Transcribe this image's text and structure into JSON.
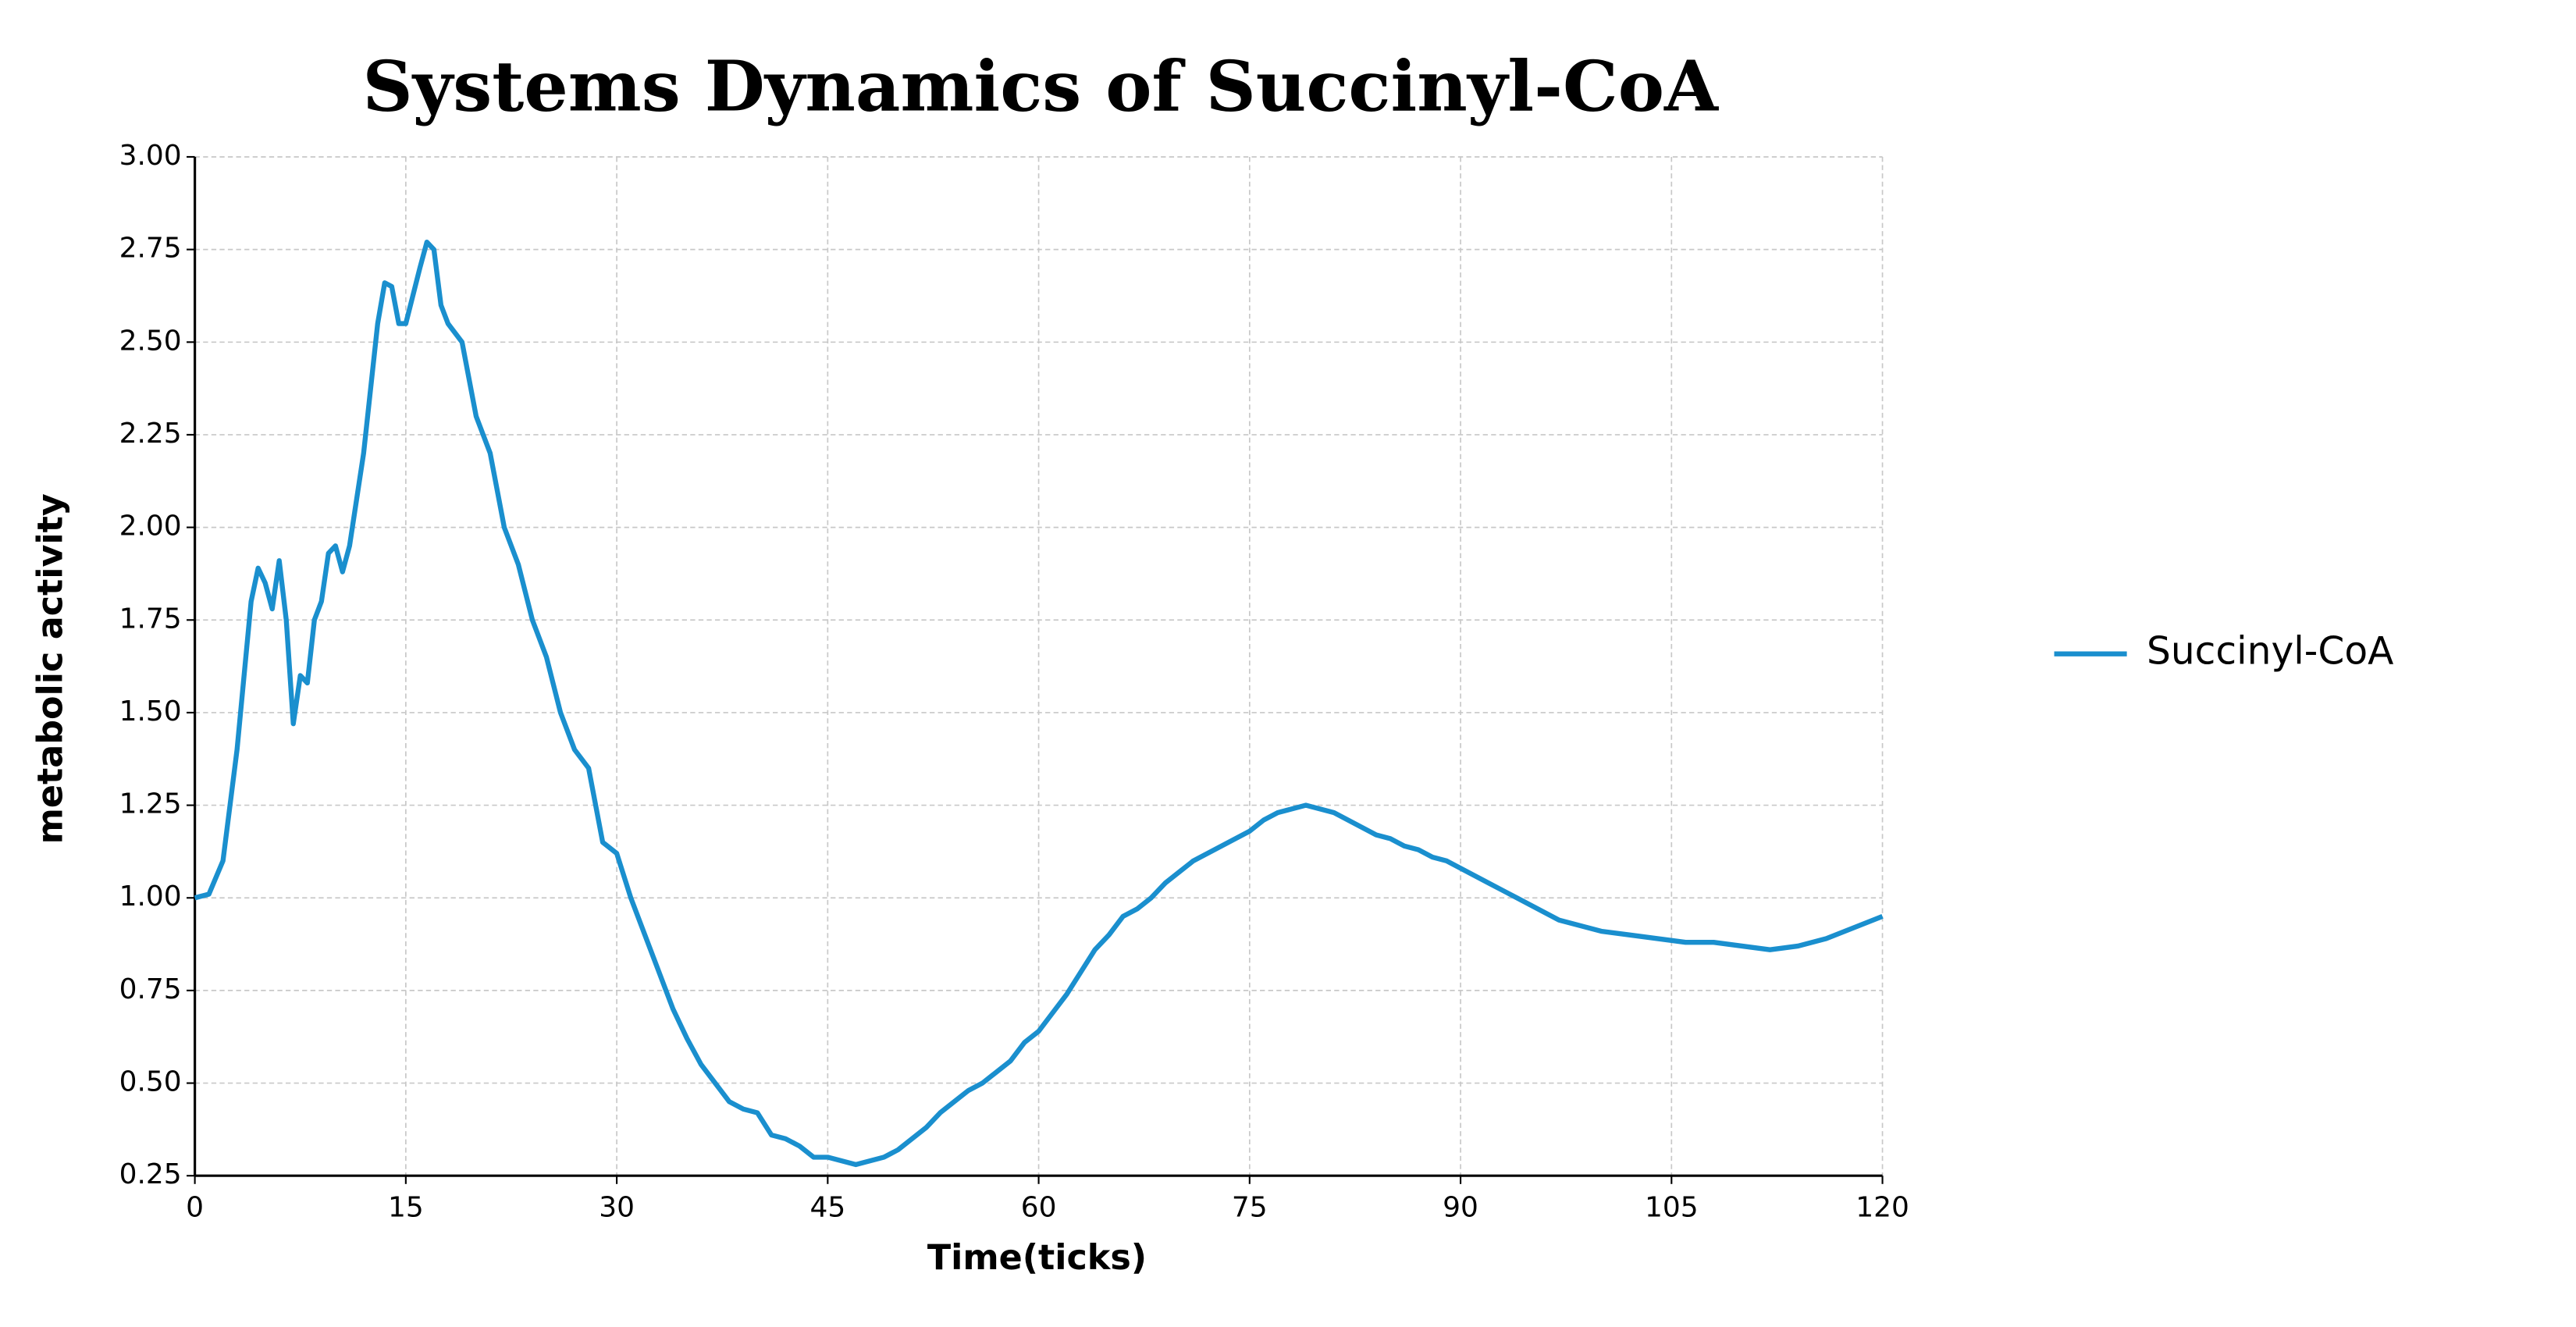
{
  "chart_data": {
    "type": "line",
    "title": "Systems Dynamics of Succinyl-CoA",
    "x_label": "Time(ticks)",
    "y_label": "metabolic activity",
    "x": [
      0,
      1,
      2,
      3,
      4,
      4.5,
      5,
      5.5,
      6,
      6.5,
      7,
      7.5,
      8,
      8.5,
      9,
      9.5,
      10,
      10.5,
      11,
      12,
      13,
      13.5,
      14,
      14.5,
      15,
      16,
      16.5,
      17,
      17.5,
      18,
      19,
      20,
      21,
      22,
      23,
      24,
      25,
      26,
      27,
      28,
      29,
      30,
      31,
      32,
      33,
      34,
      35,
      36,
      37,
      38,
      39,
      40,
      41,
      42,
      43,
      44,
      45,
      46,
      47,
      48,
      49,
      50,
      51,
      52,
      53,
      54,
      55,
      56,
      57,
      58,
      59,
      60,
      61,
      62,
      63,
      64,
      65,
      66,
      67,
      68,
      69,
      70,
      71,
      72,
      73,
      74,
      75,
      76,
      77,
      78,
      79,
      80,
      81,
      82,
      83,
      84,
      85,
      86,
      87,
      88,
      89,
      90,
      91,
      92,
      93,
      94,
      95,
      96,
      97,
      98,
      99,
      100,
      102,
      104,
      106,
      108,
      110,
      112,
      114,
      116,
      118,
      120
    ],
    "series": [
      {
        "name": "Succinyl-CoA",
        "color": "#1a8fce",
        "values": [
          1.0,
          1.01,
          1.1,
          1.4,
          1.8,
          1.89,
          1.85,
          1.78,
          1.91,
          1.75,
          1.47,
          1.6,
          1.58,
          1.75,
          1.8,
          1.93,
          1.95,
          1.88,
          1.95,
          2.2,
          2.55,
          2.66,
          2.65,
          2.55,
          2.55,
          2.7,
          2.77,
          2.75,
          2.6,
          2.55,
          2.5,
          2.3,
          2.2,
          2.0,
          1.9,
          1.75,
          1.65,
          1.5,
          1.4,
          1.35,
          1.15,
          1.12,
          1.0,
          0.9,
          0.8,
          0.7,
          0.62,
          0.55,
          0.5,
          0.45,
          0.43,
          0.42,
          0.36,
          0.35,
          0.33,
          0.3,
          0.3,
          0.29,
          0.28,
          0.29,
          0.3,
          0.32,
          0.35,
          0.38,
          0.42,
          0.45,
          0.48,
          0.5,
          0.53,
          0.56,
          0.61,
          0.64,
          0.69,
          0.74,
          0.8,
          0.86,
          0.9,
          0.95,
          0.97,
          1.0,
          1.04,
          1.07,
          1.1,
          1.12,
          1.14,
          1.16,
          1.18,
          1.21,
          1.23,
          1.24,
          1.25,
          1.24,
          1.23,
          1.21,
          1.19,
          1.17,
          1.16,
          1.14,
          1.13,
          1.11,
          1.1,
          1.08,
          1.06,
          1.04,
          1.02,
          1.0,
          0.98,
          0.96,
          0.94,
          0.93,
          0.92,
          0.91,
          0.9,
          0.89,
          0.88,
          0.88,
          0.87,
          0.86,
          0.87,
          0.89,
          0.92,
          0.95
        ]
      }
    ],
    "xlim": [
      0,
      120
    ],
    "xticks": [
      0,
      15,
      30,
      45,
      60,
      75,
      90,
      105,
      120
    ],
    "ylim": [
      0.25,
      3.0
    ],
    "yticks": [
      0.25,
      {
        "value": 0.5,
        "label": "0.50"
      },
      0.75,
      {
        "value": 1,
        "label": "1.00"
      },
      1.25,
      {
        "value": 1.5,
        "label": "1.50"
      },
      1.75,
      {
        "value": 2,
        "label": "2.00"
      },
      2.25,
      {
        "value": 2.5,
        "label": "2.50"
      },
      2.75,
      {
        "value": 3,
        "label": "3.00"
      }
    ],
    "grid": true,
    "legend": "right"
  }
}
